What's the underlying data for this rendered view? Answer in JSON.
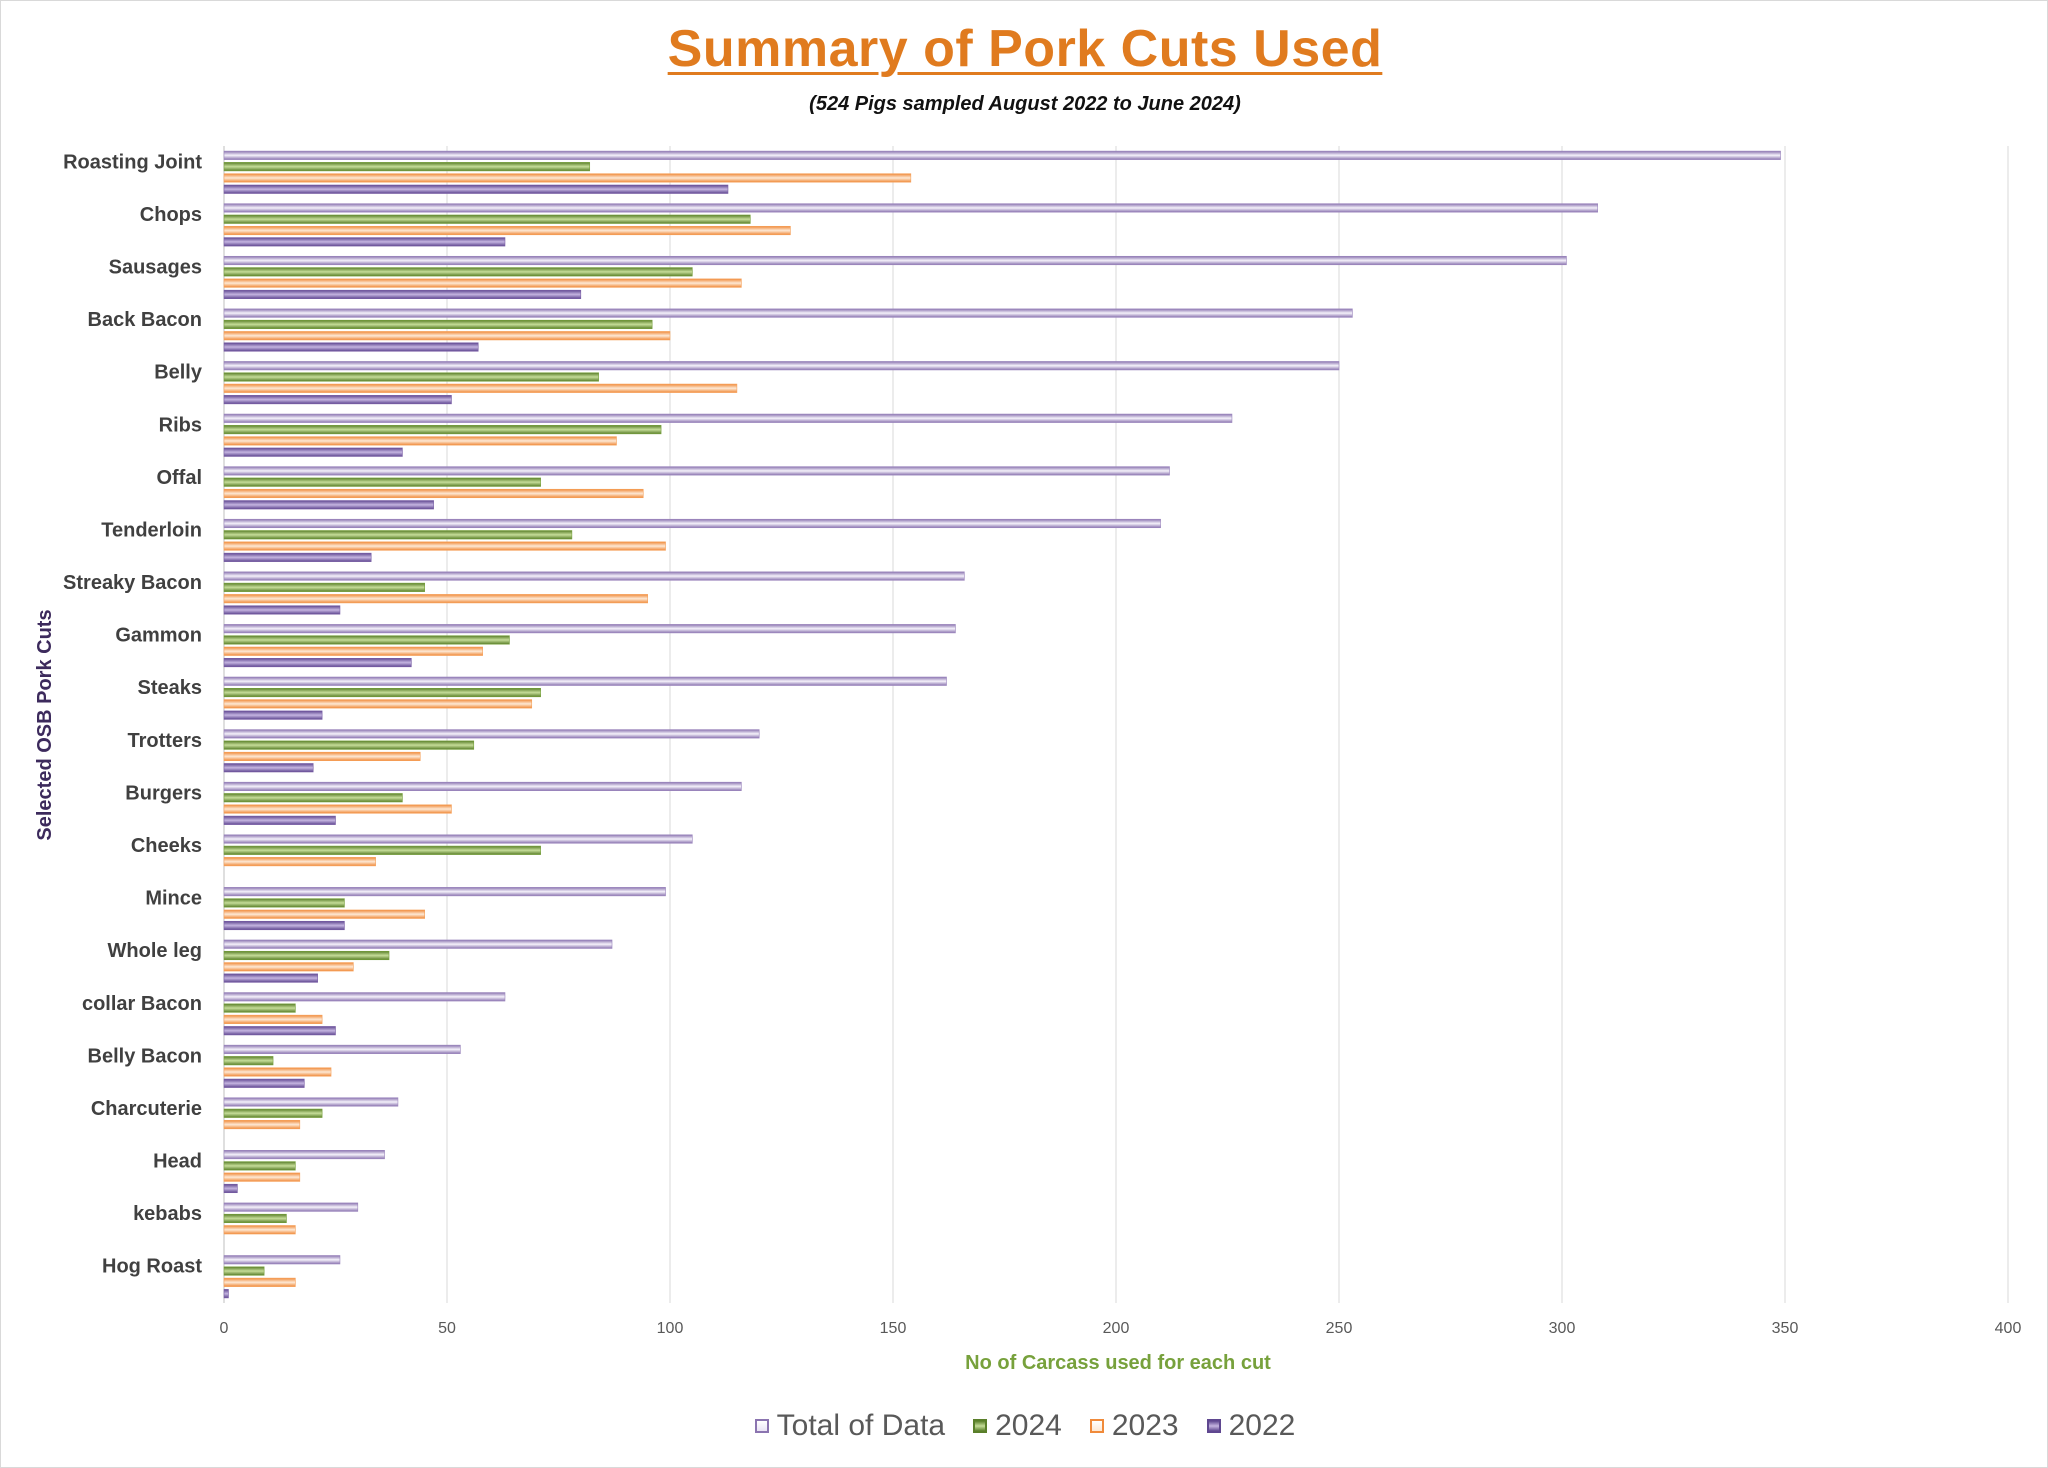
{
  "chart_data": {
    "type": "bar",
    "orientation": "horizontal",
    "title": "Summary of Pork Cuts Used",
    "subtitle": "(524 Pigs sampled August 2022 to June 2024)",
    "xlabel": "No of Carcass used for each cut",
    "ylabel": "Selected OSB Pork Cuts",
    "xlim": [
      0,
      400
    ],
    "xticks": [
      0,
      50,
      100,
      150,
      200,
      250,
      300,
      350,
      400
    ],
    "grid": true,
    "legend_position": "bottom",
    "categories": [
      "Roasting Joint",
      "Chops",
      "Sausages",
      "Back Bacon",
      "Belly",
      "Ribs",
      "Offal",
      "Tenderloin",
      "Streaky Bacon",
      "Gammon",
      "Steaks",
      "Trotters",
      "Burgers",
      "Cheeks",
      "Mince",
      "Whole leg",
      "collar Bacon",
      "Belly Bacon",
      "Charcuterie",
      "Head",
      "kebabs",
      "Hog Roast"
    ],
    "series": [
      {
        "name": "Total of Data",
        "color": "#9b86bd",
        "values": [
          349,
          308,
          301,
          253,
          250,
          226,
          212,
          210,
          166,
          164,
          162,
          120,
          116,
          105,
          99,
          87,
          63,
          53,
          39,
          36,
          30,
          26
        ]
      },
      {
        "name": "2024",
        "color": "#77a13c",
        "values": [
          82,
          118,
          105,
          96,
          84,
          98,
          71,
          78,
          45,
          64,
          71,
          56,
          40,
          71,
          27,
          37,
          16,
          11,
          22,
          16,
          14,
          9
        ]
      },
      {
        "name": "2023",
        "color": "#f5a25c",
        "values": [
          154,
          127,
          116,
          100,
          115,
          88,
          94,
          99,
          95,
          58,
          69,
          44,
          51,
          34,
          45,
          29,
          22,
          24,
          17,
          17,
          16,
          16
        ]
      },
      {
        "name": "2022",
        "color": "#7a5fa6",
        "values": [
          113,
          63,
          80,
          57,
          51,
          40,
          47,
          33,
          26,
          42,
          22,
          20,
          25,
          0,
          27,
          21,
          25,
          18,
          0,
          3,
          0,
          1
        ]
      }
    ]
  }
}
